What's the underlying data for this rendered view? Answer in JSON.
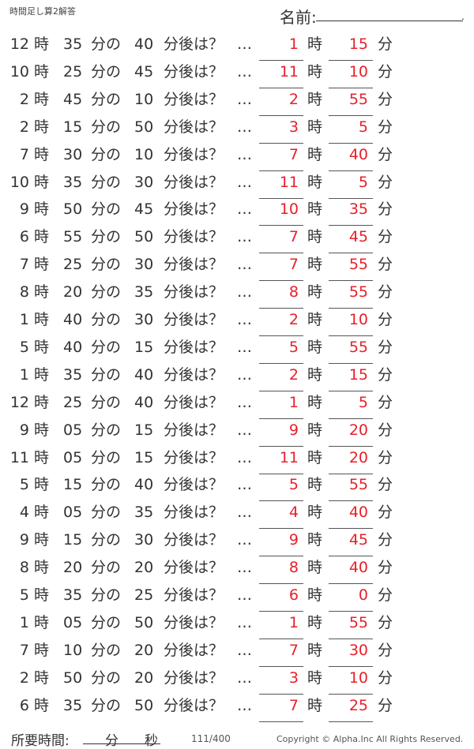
{
  "header": {
    "title": "時間足し算2解答",
    "name_label": "名前:",
    "name_end": "."
  },
  "labels": {
    "hour": "時",
    "min_no": "分の",
    "min_after": "分後は？",
    "ellipsis": "…",
    "min": "分"
  },
  "problems": [
    {
      "h": "12",
      "m": "35",
      "add": "40",
      "ah": "1",
      "am": "15"
    },
    {
      "h": "10",
      "m": "25",
      "add": "45",
      "ah": "11",
      "am": "10"
    },
    {
      "h": "2",
      "m": "45",
      "add": "10",
      "ah": "2",
      "am": "55"
    },
    {
      "h": "2",
      "m": "15",
      "add": "50",
      "ah": "3",
      "am": "5"
    },
    {
      "h": "7",
      "m": "30",
      "add": "10",
      "ah": "7",
      "am": "40"
    },
    {
      "h": "10",
      "m": "35",
      "add": "30",
      "ah": "11",
      "am": "5"
    },
    {
      "h": "9",
      "m": "50",
      "add": "45",
      "ah": "10",
      "am": "35"
    },
    {
      "h": "6",
      "m": "55",
      "add": "50",
      "ah": "7",
      "am": "45"
    },
    {
      "h": "7",
      "m": "25",
      "add": "30",
      "ah": "7",
      "am": "55"
    },
    {
      "h": "8",
      "m": "20",
      "add": "35",
      "ah": "8",
      "am": "55"
    },
    {
      "h": "1",
      "m": "40",
      "add": "30",
      "ah": "2",
      "am": "10"
    },
    {
      "h": "5",
      "m": "40",
      "add": "15",
      "ah": "5",
      "am": "55"
    },
    {
      "h": "1",
      "m": "35",
      "add": "40",
      "ah": "2",
      "am": "15"
    },
    {
      "h": "12",
      "m": "25",
      "add": "40",
      "ah": "1",
      "am": "5"
    },
    {
      "h": "9",
      "m": "05",
      "add": "15",
      "ah": "9",
      "am": "20"
    },
    {
      "h": "11",
      "m": "05",
      "add": "15",
      "ah": "11",
      "am": "20"
    },
    {
      "h": "5",
      "m": "15",
      "add": "40",
      "ah": "5",
      "am": "55"
    },
    {
      "h": "4",
      "m": "05",
      "add": "35",
      "ah": "4",
      "am": "40"
    },
    {
      "h": "9",
      "m": "15",
      "add": "30",
      "ah": "9",
      "am": "45"
    },
    {
      "h": "8",
      "m": "20",
      "add": "20",
      "ah": "8",
      "am": "40"
    },
    {
      "h": "5",
      "m": "35",
      "add": "25",
      "ah": "6",
      "am": "0"
    },
    {
      "h": "1",
      "m": "05",
      "add": "50",
      "ah": "1",
      "am": "55"
    },
    {
      "h": "7",
      "m": "10",
      "add": "20",
      "ah": "7",
      "am": "30"
    },
    {
      "h": "2",
      "m": "50",
      "add": "20",
      "ah": "3",
      "am": "10"
    },
    {
      "h": "6",
      "m": "35",
      "add": "50",
      "ah": "7",
      "am": "25"
    }
  ],
  "footer": {
    "time_label": "所要時間:",
    "min": "分",
    "sec": "秒",
    "page": "111/400",
    "copyright": "Copyright ©  Alpha.Inc All Rights Reserved."
  },
  "colors": {
    "answer": "#e8202a",
    "text": "#333333"
  }
}
